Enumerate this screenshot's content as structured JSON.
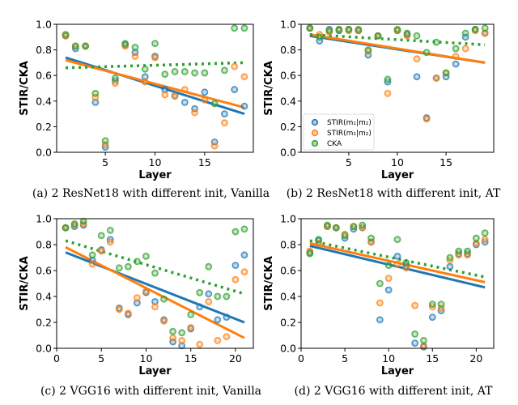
{
  "colors": {
    "stir_a": "#1f77b4",
    "stir_b": "#ff7f0e",
    "cka": "#2ca02c"
  },
  "chart_data": [
    {
      "type": "scatter",
      "caption": "(a) 2 ResNet18 with different init, Vanilla",
      "xlabel": "Layer",
      "ylabel": "STIR/CKA",
      "xlim": [
        0.1,
        19.9
      ],
      "ylim": [
        0,
        1
      ],
      "xticks": [
        "5",
        "10",
        "15"
      ],
      "yticks": [
        "0.0",
        "0.2",
        "0.4",
        "0.6",
        "0.8",
        "1.0"
      ],
      "grid": false,
      "legend": null,
      "x": [
        1,
        2,
        3,
        4,
        5,
        6,
        7,
        8,
        9,
        10,
        11,
        12,
        13,
        14,
        15,
        16,
        17,
        18,
        19
      ],
      "series": [
        {
          "name": "STIR(m1|m2)",
          "color": "#1f77b4",
          "values": [
            0.91,
            0.81,
            0.83,
            0.39,
            0.04,
            0.56,
            0.84,
            0.78,
            0.59,
            0.75,
            0.49,
            0.44,
            0.39,
            0.34,
            0.47,
            0.08,
            0.3,
            0.49,
            0.36
          ],
          "trend": [
            0.74,
            0.3
          ],
          "trend_style": "solid"
        },
        {
          "name": "STIR(m1|m2)",
          "color": "#ff7f0e",
          "values": [
            0.91,
            0.83,
            0.83,
            0.43,
            0.06,
            0.54,
            0.83,
            0.75,
            0.55,
            0.74,
            0.45,
            0.44,
            0.49,
            0.31,
            0.41,
            0.05,
            0.23,
            0.67,
            0.59
          ],
          "trend": [
            0.72,
            0.35
          ],
          "trend_style": "solid"
        },
        {
          "name": "CKA",
          "color": "#2ca02c",
          "values": [
            0.92,
            0.83,
            0.83,
            0.46,
            0.09,
            0.58,
            0.85,
            0.82,
            0.65,
            0.85,
            0.61,
            0.63,
            0.63,
            0.62,
            0.62,
            0.38,
            0.64,
            0.97,
            0.97
          ],
          "trend": [
            0.66,
            0.7
          ],
          "trend_style": "dotted"
        }
      ]
    },
    {
      "type": "scatter",
      "caption": "(b) 2 ResNet18 with different init, AT",
      "xlabel": "Layer",
      "ylabel": "STIR/CKA",
      "xlim": [
        0.1,
        19.9
      ],
      "ylim": [
        0,
        1
      ],
      "xticks": [
        "5",
        "10",
        "15"
      ],
      "yticks": [
        "0.0",
        "0.2",
        "0.4",
        "0.6",
        "0.8",
        "1.0"
      ],
      "grid": false,
      "legend": "lower-left",
      "legend_labels": [
        "STIR(m₁|m₂)",
        "STIR(m₁|m₂)",
        "CKA"
      ],
      "x": [
        1,
        2,
        3,
        4,
        5,
        6,
        7,
        8,
        9,
        10,
        11,
        12,
        13,
        14,
        15,
        16,
        17,
        18,
        19
      ],
      "series": [
        {
          "name": "STIR(m1|m2)",
          "color": "#1f77b4",
          "values": [
            0.97,
            0.87,
            0.96,
            0.95,
            0.96,
            0.95,
            0.76,
            0.91,
            0.55,
            0.95,
            0.92,
            0.59,
            0.27,
            0.58,
            0.59,
            0.69,
            0.9,
            0.96,
            0.93
          ],
          "trend": [
            0.91,
            0.7
          ],
          "trend_style": "solid"
        },
        {
          "name": "STIR(m1|m2)",
          "color": "#ff7f0e",
          "values": [
            0.97,
            0.92,
            0.94,
            0.96,
            0.95,
            0.95,
            0.79,
            0.91,
            0.46,
            0.95,
            0.91,
            0.73,
            0.26,
            0.58,
            0.62,
            0.75,
            0.81,
            0.95,
            0.93
          ],
          "trend": [
            0.92,
            0.7
          ],
          "trend_style": "solid"
        },
        {
          "name": "CKA",
          "color": "#2ca02c",
          "values": [
            0.97,
            0.9,
            0.95,
            0.96,
            0.96,
            0.96,
            0.8,
            0.91,
            0.57,
            0.96,
            0.93,
            0.91,
            0.78,
            0.86,
            0.62,
            0.81,
            0.93,
            0.96,
            0.97
          ],
          "trend": [
            0.92,
            0.84
          ],
          "trend_style": "dotted"
        }
      ]
    },
    {
      "type": "scatter",
      "caption": "(c) 2 VGG16 with different init, Vanilla",
      "xlabel": "Layer",
      "ylabel": "STIR/CKA",
      "xlim": [
        0,
        22
      ],
      "ylim": [
        0,
        1
      ],
      "xticks": [
        "0",
        "5",
        "10",
        "15",
        "20"
      ],
      "yticks": [
        "0.0",
        "0.2",
        "0.4",
        "0.6",
        "0.8",
        "1.0"
      ],
      "grid": false,
      "legend": null,
      "x": [
        1,
        2,
        3,
        4,
        5,
        6,
        7,
        8,
        9,
        10,
        11,
        12,
        13,
        14,
        15,
        16,
        17,
        18,
        19,
        20,
        21
      ],
      "series": [
        {
          "name": "STIR(m1|m2)",
          "color": "#1f77b4",
          "values": [
            0.93,
            0.94,
            0.95,
            0.68,
            0.76,
            0.84,
            0.31,
            0.26,
            0.35,
            0.43,
            0.36,
            0.22,
            0.05,
            0.02,
            0.15,
            0.32,
            0.42,
            0.22,
            0.24,
            0.64,
            0.72
          ],
          "trend": [
            0.74,
            0.2
          ],
          "trend_style": "solid"
        },
        {
          "name": "STIR(m1|m2)",
          "color": "#ff7f0e",
          "values": [
            0.93,
            0.95,
            0.96,
            0.65,
            0.75,
            0.82,
            0.3,
            0.27,
            0.39,
            0.44,
            0.32,
            0.21,
            0.08,
            0.06,
            0.16,
            0.03,
            0.36,
            0.06,
            0.09,
            0.53,
            0.59
          ],
          "trend": [
            0.78,
            0.08
          ],
          "trend_style": "solid"
        },
        {
          "name": "CKA",
          "color": "#2ca02c",
          "values": [
            0.93,
            0.96,
            0.98,
            0.72,
            0.87,
            0.91,
            0.62,
            0.63,
            0.67,
            0.71,
            0.58,
            0.38,
            0.13,
            0.12,
            0.26,
            0.43,
            0.63,
            0.4,
            0.4,
            0.9,
            0.92
          ],
          "trend": [
            0.83,
            0.42
          ],
          "trend_style": "dotted"
        }
      ]
    },
    {
      "type": "scatter",
      "caption": "(d) 2 VGG16 with different init, AT",
      "xlabel": "Layer",
      "ylabel": "STIR/CKA",
      "xlim": [
        0,
        22
      ],
      "ylim": [
        0,
        1
      ],
      "xticks": [
        "0",
        "5",
        "10",
        "15",
        "20"
      ],
      "yticks": [
        "0.0",
        "0.2",
        "0.4",
        "0.6",
        "0.8",
        "1.0"
      ],
      "grid": false,
      "legend": null,
      "x": [
        1,
        2,
        3,
        4,
        5,
        6,
        7,
        8,
        9,
        10,
        11,
        12,
        13,
        14,
        15,
        16,
        17,
        18,
        19,
        20,
        21
      ],
      "series": [
        {
          "name": "STIR(m1|m2)",
          "color": "#1f77b4",
          "values": [
            0.74,
            0.83,
            0.94,
            0.93,
            0.85,
            0.92,
            0.93,
            0.82,
            0.22,
            0.45,
            0.71,
            0.64,
            0.04,
            0.01,
            0.24,
            0.29,
            0.63,
            0.73,
            0.73,
            0.8,
            0.82
          ],
          "trend": [
            0.79,
            0.47
          ],
          "trend_style": "solid"
        },
        {
          "name": "STIR(m1|m2)",
          "color": "#ff7f0e",
          "values": [
            0.75,
            0.81,
            0.94,
            0.93,
            0.88,
            0.94,
            0.93,
            0.82,
            0.35,
            0.54,
            0.65,
            0.62,
            0.33,
            0.02,
            0.32,
            0.31,
            0.68,
            0.72,
            0.72,
            0.81,
            0.84
          ],
          "trend": [
            0.81,
            0.51
          ],
          "trend_style": "solid"
        },
        {
          "name": "CKA",
          "color": "#2ca02c",
          "values": [
            0.73,
            0.84,
            0.95,
            0.93,
            0.87,
            0.94,
            0.95,
            0.85,
            0.5,
            0.64,
            0.84,
            0.66,
            0.11,
            0.06,
            0.34,
            0.34,
            0.7,
            0.75,
            0.75,
            0.85,
            0.89
          ],
          "trend": [
            0.83,
            0.55
          ],
          "trend_style": "dotted"
        }
      ]
    }
  ]
}
